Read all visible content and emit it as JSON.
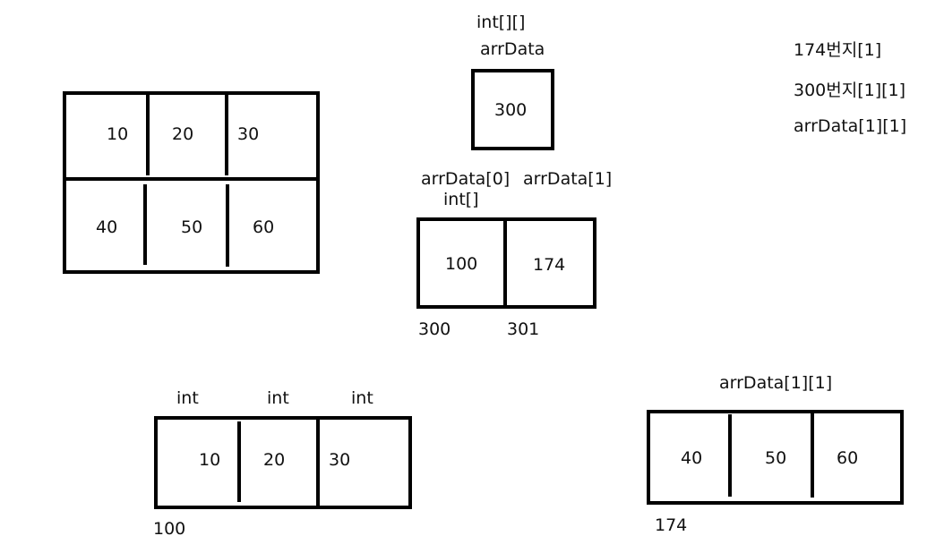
{
  "grid2d": {
    "row0": [
      "10",
      "20",
      "30"
    ],
    "row1": [
      "40",
      "50",
      "60"
    ]
  },
  "ref_var": {
    "type_label": "int[][]",
    "name_label": "arrData",
    "value": "300"
  },
  "ref_array": {
    "label_0": "arrData[0]",
    "label_0_type": "int[]",
    "label_1": "arrData[1]",
    "values": [
      "100",
      "174"
    ],
    "addresses": [
      "300",
      "301"
    ]
  },
  "notes": [
    "174번지[1]",
    "300번지[1][1]",
    "arrData[1][1]"
  ],
  "row_array_a": {
    "types": [
      "int",
      "int",
      "int"
    ],
    "values": [
      "10",
      "20",
      "30"
    ],
    "address": "100"
  },
  "row_array_b": {
    "label": "arrData[1][1]",
    "values": [
      "40",
      "50",
      "60"
    ],
    "address": "174"
  }
}
